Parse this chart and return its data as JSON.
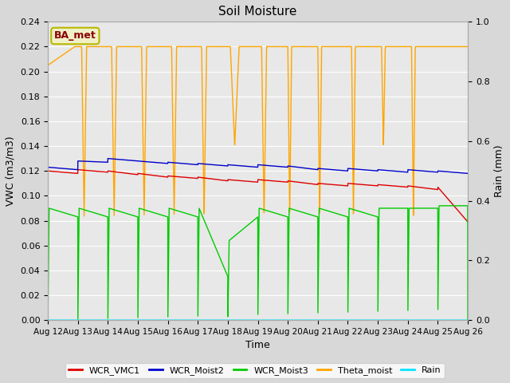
{
  "title": "Soil Moisture",
  "xlabel": "Time",
  "ylabel_left": "VWC (m3/m3)",
  "ylabel_right": "Rain (mm)",
  "ylim_left": [
    0.0,
    0.24
  ],
  "ylim_right": [
    0.0,
    1.0
  ],
  "background_color": "#d8d8d8",
  "plot_bg_color": "#e8e8e8",
  "legend_label": "BA_met",
  "legend_box_facecolor": "#f0f0c8",
  "legend_box_edgecolor": "#b8b800",
  "legend_text_color": "#8b0000",
  "x_tick_labels": [
    "Aug 12",
    "Aug 13",
    "Aug 14",
    "Aug 15",
    "Aug 16",
    "Aug 17",
    "Aug 18",
    "Aug 19",
    "Aug 20",
    "Aug 21",
    "Aug 22",
    "Aug 23",
    "Aug 24",
    "Aug 25",
    "Aug 26"
  ],
  "colors": {
    "WCR_VMC1": "#dd0000",
    "WCR_Moist2": "#0000cc",
    "WCR_Moist3": "#00cc00",
    "Theta_moist": "#ffa500",
    "Rain": "#00e5ff"
  },
  "n_days": 14,
  "pts_per_day": 240
}
